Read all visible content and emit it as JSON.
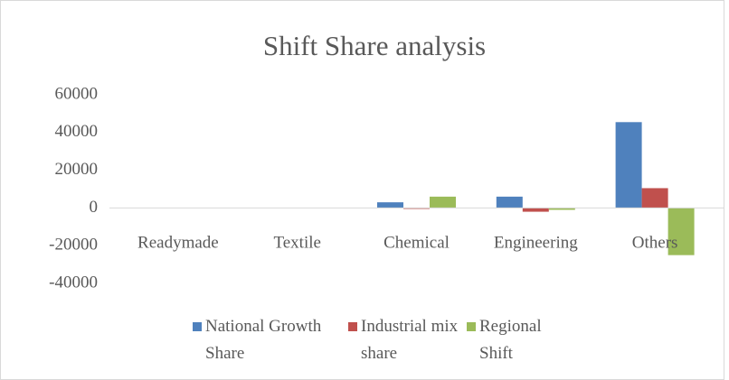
{
  "chart_data": {
    "type": "bar",
    "title": "Shift Share analysis",
    "categories": [
      "Readymade",
      "Textile",
      "Chemical",
      "Engineering",
      "Others"
    ],
    "series": [
      {
        "name": "National Growth Share",
        "color": "#4f81bd",
        "values": [
          0,
          0,
          3000,
          6000,
          45500
        ]
      },
      {
        "name": "Industrial mix share",
        "color": "#c0504d",
        "values": [
          0,
          0,
          -500,
          -2000,
          10500
        ]
      },
      {
        "name": "Regional Shift",
        "color": "#9bbb59",
        "values": [
          0,
          0,
          6000,
          -1000,
          -25000
        ]
      }
    ],
    "ylim": [
      -40000,
      60000
    ],
    "yticks": [
      -40000,
      -20000,
      0,
      20000,
      40000,
      60000
    ],
    "grid": false,
    "legend": "bottom"
  }
}
